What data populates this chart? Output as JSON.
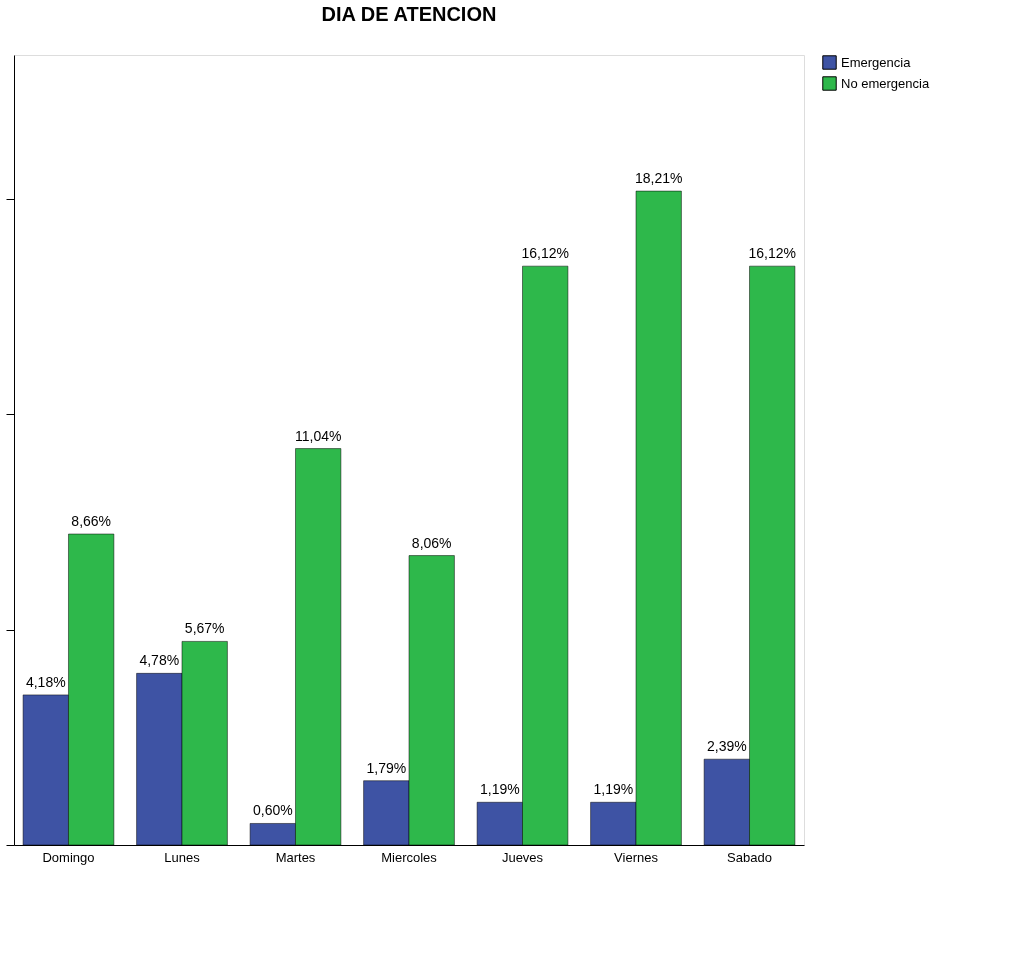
{
  "chart_data": {
    "type": "bar",
    "title": "DIA DE ATENCION",
    "categories": [
      "Domingo",
      "Lunes",
      "Martes",
      "Miercoles",
      "Jueves",
      "Viernes",
      "Sabado"
    ],
    "series": [
      {
        "name": "Emergencia",
        "color": "#3e53a4",
        "values": [
          4.18,
          4.78,
          0.6,
          1.79,
          1.19,
          1.19,
          2.39
        ],
        "value_labels": [
          "4,18%",
          "4,78%",
          "0,60%",
          "1,79%",
          "1,19%",
          "1,19%",
          "2,39%"
        ]
      },
      {
        "name": "No emergencia",
        "color": "#2eb84b",
        "values": [
          8.66,
          5.67,
          11.04,
          8.06,
          16.12,
          18.21,
          16.12
        ],
        "value_labels": [
          "8,66%",
          "5,67%",
          "11,04%",
          "8,06%",
          "16,12%",
          "18,21%",
          "16,12%"
        ]
      }
    ],
    "ylim": [
      0,
      22
    ],
    "yticks": [
      {
        "value": 0,
        "label": null
      },
      {
        "value": 6,
        "label": null
      },
      {
        "value": 12,
        "label": null
      },
      {
        "value": 18,
        "label": null
      }
    ],
    "tick_labels": "x",
    "grid": false,
    "legend": "top right"
  }
}
